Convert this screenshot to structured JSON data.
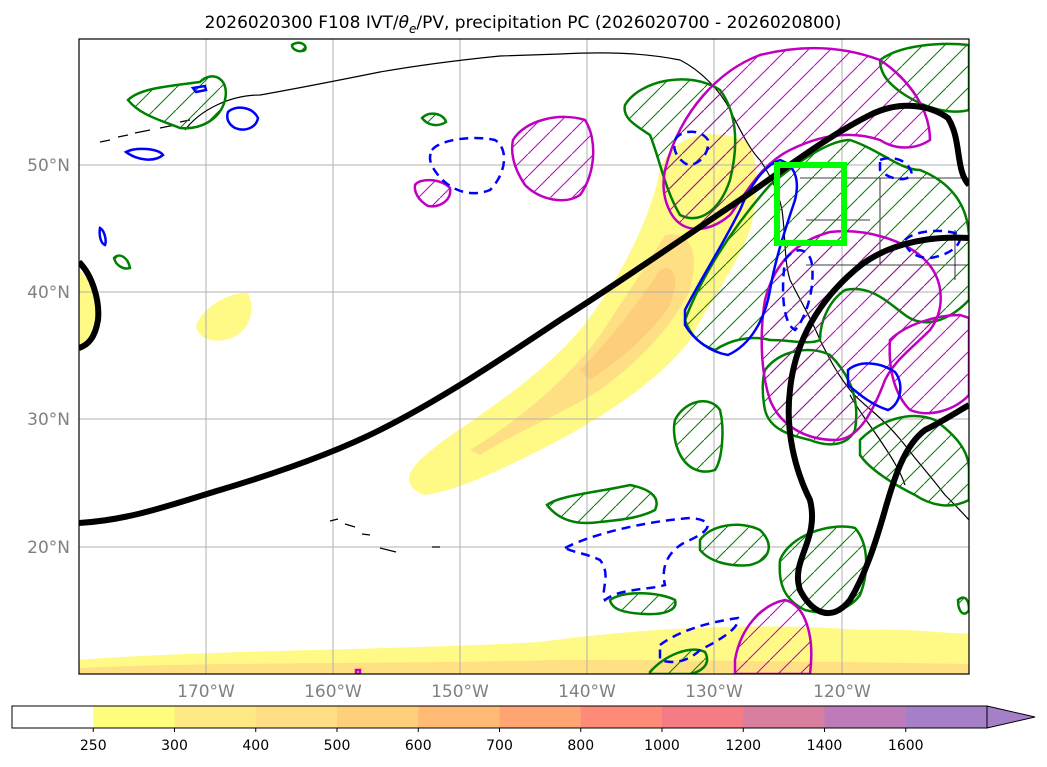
{
  "title": {
    "prefix": "2026020300 F108 IVT/",
    "theta": "θ",
    "theta_sub": "e",
    "suffix": "/PV, precipitation PC (2026020700 - 2026020800)"
  },
  "map": {
    "lon_range": [
      -180,
      -110
    ],
    "lat_range": [
      10,
      60
    ],
    "lat_ticks": [
      "50°N",
      "40°N",
      "30°N",
      "20°N"
    ],
    "lon_ticks": [
      "170°W",
      "160°W",
      "150°W",
      "140°W",
      "130°W",
      "120°W"
    ],
    "highlight_box": {
      "lon": [
        -125,
        -120
      ],
      "lat": [
        44,
        50
      ],
      "color": "#00ff00"
    },
    "layers": {
      "ivt_fill": {
        "color": "#fff87a",
        "core_color": "#fdd076"
      },
      "theta_e_contour": "#000000",
      "pv_positive": "#0000ff",
      "pv_negative": "#0000ff",
      "precip_green": "#008000",
      "precip_magenta": "#c000c0"
    }
  },
  "colorbar": {
    "labels": [
      "250",
      "300",
      "400",
      "500",
      "600",
      "700",
      "800",
      "1000",
      "1200",
      "1400",
      "1600"
    ],
    "colors": [
      "#ffffff",
      "#fffd7c",
      "#ffe985",
      "#ffdd84",
      "#ffd07c",
      "#ffbb76",
      "#ffa473",
      "#fe8b78",
      "#f57b85",
      "#d87f9f",
      "#bd7bb9",
      "#a57fc8"
    ]
  }
}
